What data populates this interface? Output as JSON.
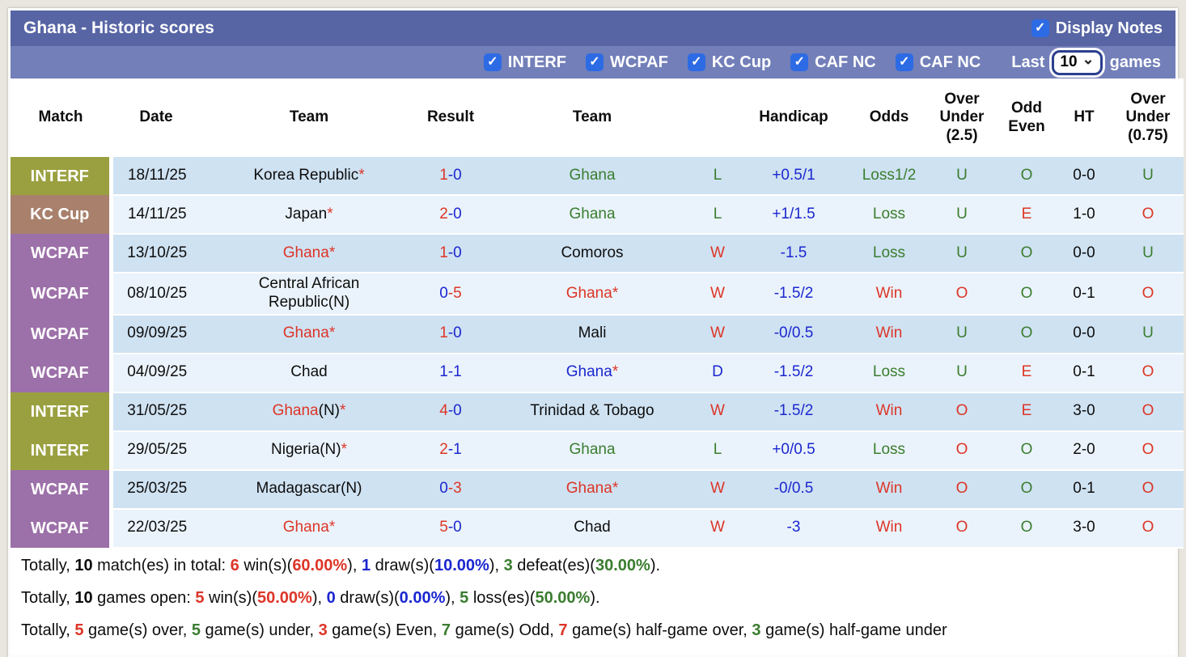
{
  "title_bar": {
    "title": "Ghana - Historic scores",
    "display_notes": "Display Notes"
  },
  "filter_bar": {
    "competitions": [
      "INTERF",
      "WCPAF",
      "KC Cup",
      "CAF NC",
      "CAF NC"
    ],
    "last": "Last",
    "selected_count": "10",
    "games": "games"
  },
  "table": {
    "headers": [
      {
        "key": "match",
        "label": "Match"
      },
      {
        "key": "date",
        "label": "Date"
      },
      {
        "key": "team-home",
        "label": "Team"
      },
      {
        "key": "result",
        "label": "Result"
      },
      {
        "key": "team-away",
        "label": "Team"
      },
      {
        "key": "result-letter",
        "label": ""
      },
      {
        "key": "handicap",
        "label": "Handicap"
      },
      {
        "key": "odds",
        "label": "Odds"
      },
      {
        "key": "over-under-2-5",
        "label": "Over\nUnder\n(2.5)"
      },
      {
        "key": "odd-even",
        "label": "Odd\nEven"
      },
      {
        "key": "ht",
        "label": "HT"
      },
      {
        "key": "over-under-0-75",
        "label": "Over\nUnder\n(0.75)"
      }
    ],
    "rows": [
      {
        "competition": "INTERF",
        "badge": "interf",
        "date": "18/11/25",
        "home": [
          {
            "t": "Korea Republic",
            "c": "black"
          },
          {
            "t": "*",
            "c": "red"
          }
        ],
        "score": {
          "h": "1",
          "hc": "red",
          "a": "0",
          "ac": "blue"
        },
        "away": [
          {
            "t": "Ghana",
            "c": "green"
          }
        ],
        "wdl": {
          "t": "L",
          "c": "green"
        },
        "handicap": "+0.5/1",
        "odds": {
          "t": "Loss1/2",
          "c": "green"
        },
        "ou25": {
          "t": "U",
          "c": "green"
        },
        "oddeven": {
          "t": "O",
          "c": "green"
        },
        "ht": "0-0",
        "ou075": {
          "t": "U",
          "c": "green"
        }
      },
      {
        "competition": "KC Cup",
        "badge": "kccup",
        "date": "14/11/25",
        "home": [
          {
            "t": "Japan",
            "c": "black"
          },
          {
            "t": "*",
            "c": "red"
          }
        ],
        "score": {
          "h": "2",
          "hc": "red",
          "a": "0",
          "ac": "blue"
        },
        "away": [
          {
            "t": "Ghana",
            "c": "green"
          }
        ],
        "wdl": {
          "t": "L",
          "c": "green"
        },
        "handicap": "+1/1.5",
        "odds": {
          "t": "Loss",
          "c": "green"
        },
        "ou25": {
          "t": "U",
          "c": "green"
        },
        "oddeven": {
          "t": "E",
          "c": "red"
        },
        "ht": "1-0",
        "ou075": {
          "t": "O",
          "c": "red"
        }
      },
      {
        "competition": "WCPAF",
        "badge": "wcpaf",
        "date": "13/10/25",
        "home": [
          {
            "t": "Ghana",
            "c": "red"
          },
          {
            "t": "*",
            "c": "red"
          }
        ],
        "score": {
          "h": "1",
          "hc": "red",
          "a": "0",
          "ac": "blue"
        },
        "away": [
          {
            "t": "Comoros",
            "c": "black"
          }
        ],
        "wdl": {
          "t": "W",
          "c": "red"
        },
        "handicap": "-1.5",
        "odds": {
          "t": "Loss",
          "c": "green"
        },
        "ou25": {
          "t": "U",
          "c": "green"
        },
        "oddeven": {
          "t": "O",
          "c": "green"
        },
        "ht": "0-0",
        "ou075": {
          "t": "U",
          "c": "green"
        }
      },
      {
        "competition": "WCPAF",
        "badge": "wcpaf",
        "date": "08/10/25",
        "home": [
          {
            "t": "Central African Republic(N)",
            "c": "black"
          }
        ],
        "score": {
          "h": "0",
          "hc": "blue",
          "a": "5",
          "ac": "red"
        },
        "away": [
          {
            "t": "Ghana",
            "c": "red"
          },
          {
            "t": "*",
            "c": "red"
          }
        ],
        "wdl": {
          "t": "W",
          "c": "red"
        },
        "handicap": "-1.5/2",
        "odds": {
          "t": "Win",
          "c": "red"
        },
        "ou25": {
          "t": "O",
          "c": "red"
        },
        "oddeven": {
          "t": "O",
          "c": "green"
        },
        "ht": "0-1",
        "ou075": {
          "t": "O",
          "c": "red"
        }
      },
      {
        "competition": "WCPAF",
        "badge": "wcpaf",
        "date": "09/09/25",
        "home": [
          {
            "t": "Ghana",
            "c": "red"
          },
          {
            "t": "*",
            "c": "red"
          }
        ],
        "score": {
          "h": "1",
          "hc": "red",
          "a": "0",
          "ac": "blue"
        },
        "away": [
          {
            "t": "Mali",
            "c": "black"
          }
        ],
        "wdl": {
          "t": "W",
          "c": "red"
        },
        "handicap": "-0/0.5",
        "odds": {
          "t": "Win",
          "c": "red"
        },
        "ou25": {
          "t": "U",
          "c": "green"
        },
        "oddeven": {
          "t": "O",
          "c": "green"
        },
        "ht": "0-0",
        "ou075": {
          "t": "U",
          "c": "green"
        }
      },
      {
        "competition": "WCPAF",
        "badge": "wcpaf",
        "date": "04/09/25",
        "home": [
          {
            "t": "Chad",
            "c": "black"
          }
        ],
        "score": {
          "h": "1",
          "hc": "blue",
          "a": "1",
          "ac": "blue"
        },
        "away": [
          {
            "t": "Ghana",
            "c": "blue"
          },
          {
            "t": "*",
            "c": "red"
          }
        ],
        "wdl": {
          "t": "D",
          "c": "blue"
        },
        "handicap": "-1.5/2",
        "odds": {
          "t": "Loss",
          "c": "green"
        },
        "ou25": {
          "t": "U",
          "c": "green"
        },
        "oddeven": {
          "t": "E",
          "c": "red"
        },
        "ht": "0-1",
        "ou075": {
          "t": "O",
          "c": "red"
        }
      },
      {
        "competition": "INTERF",
        "badge": "interf",
        "date": "31/05/25",
        "home": [
          {
            "t": "Ghana",
            "c": "red"
          },
          {
            "t": "(N)",
            "c": "black"
          },
          {
            "t": "*",
            "c": "red"
          }
        ],
        "score": {
          "h": "4",
          "hc": "red",
          "a": "0",
          "ac": "blue"
        },
        "away": [
          {
            "t": "Trinidad & Tobago",
            "c": "black"
          }
        ],
        "wdl": {
          "t": "W",
          "c": "red"
        },
        "handicap": "-1.5/2",
        "odds": {
          "t": "Win",
          "c": "red"
        },
        "ou25": {
          "t": "O",
          "c": "red"
        },
        "oddeven": {
          "t": "E",
          "c": "red"
        },
        "ht": "3-0",
        "ou075": {
          "t": "O",
          "c": "red"
        }
      },
      {
        "competition": "INTERF",
        "badge": "interf",
        "date": "29/05/25",
        "home": [
          {
            "t": "Nigeria",
            "c": "black"
          },
          {
            "t": "(N)",
            "c": "black"
          },
          {
            "t": "*",
            "c": "red"
          }
        ],
        "score": {
          "h": "2",
          "hc": "red",
          "a": "1",
          "ac": "blue"
        },
        "away": [
          {
            "t": "Ghana",
            "c": "green"
          }
        ],
        "wdl": {
          "t": "L",
          "c": "green"
        },
        "handicap": "+0/0.5",
        "odds": {
          "t": "Loss",
          "c": "green"
        },
        "ou25": {
          "t": "O",
          "c": "red"
        },
        "oddeven": {
          "t": "O",
          "c": "green"
        },
        "ht": "2-0",
        "ou075": {
          "t": "O",
          "c": "red"
        }
      },
      {
        "competition": "WCPAF",
        "badge": "wcpaf",
        "date": "25/03/25",
        "home": [
          {
            "t": "Madagascar(N)",
            "c": "black"
          }
        ],
        "score": {
          "h": "0",
          "hc": "blue",
          "a": "3",
          "ac": "red"
        },
        "away": [
          {
            "t": "Ghana",
            "c": "red"
          },
          {
            "t": "*",
            "c": "red"
          }
        ],
        "wdl": {
          "t": "W",
          "c": "red"
        },
        "handicap": "-0/0.5",
        "odds": {
          "t": "Win",
          "c": "red"
        },
        "ou25": {
          "t": "O",
          "c": "red"
        },
        "oddeven": {
          "t": "O",
          "c": "green"
        },
        "ht": "0-1",
        "ou075": {
          "t": "O",
          "c": "red"
        }
      },
      {
        "competition": "WCPAF",
        "badge": "wcpaf",
        "date": "22/03/25",
        "home": [
          {
            "t": "Ghana",
            "c": "red"
          },
          {
            "t": "*",
            "c": "red"
          }
        ],
        "score": {
          "h": "5",
          "hc": "red",
          "a": "0",
          "ac": "blue"
        },
        "away": [
          {
            "t": "Chad",
            "c": "black"
          }
        ],
        "wdl": {
          "t": "W",
          "c": "red"
        },
        "handicap": "-3",
        "odds": {
          "t": "Win",
          "c": "red"
        },
        "ou25": {
          "t": "O",
          "c": "red"
        },
        "oddeven": {
          "t": "O",
          "c": "green"
        },
        "ht": "3-0",
        "ou075": {
          "t": "O",
          "c": "red"
        }
      }
    ]
  },
  "summary": {
    "lines": [
      [
        {
          "t": "Totally, ",
          "c": "black"
        },
        {
          "t": "10",
          "c": "black",
          "b": 1
        },
        {
          "t": " match(es) in total: ",
          "c": "black"
        },
        {
          "t": "6",
          "c": "red",
          "b": 1
        },
        {
          "t": " win(s)(",
          "c": "black"
        },
        {
          "t": "60.00%",
          "c": "red",
          "b": 1
        },
        {
          "t": "), ",
          "c": "black"
        },
        {
          "t": "1",
          "c": "blue",
          "b": 1
        },
        {
          "t": " draw(s)(",
          "c": "black"
        },
        {
          "t": "10.00%",
          "c": "blue",
          "b": 1
        },
        {
          "t": "), ",
          "c": "black"
        },
        {
          "t": "3",
          "c": "green",
          "b": 1
        },
        {
          "t": " defeat(es)(",
          "c": "black"
        },
        {
          "t": "30.00%",
          "c": "green",
          "b": 1
        },
        {
          "t": ").",
          "c": "black"
        }
      ],
      [
        {
          "t": "Totally, ",
          "c": "black"
        },
        {
          "t": "10",
          "c": "black",
          "b": 1
        },
        {
          "t": " games open: ",
          "c": "black"
        },
        {
          "t": "5",
          "c": "red",
          "b": 1
        },
        {
          "t": " win(s)(",
          "c": "black"
        },
        {
          "t": "50.00%",
          "c": "red",
          "b": 1
        },
        {
          "t": "), ",
          "c": "black"
        },
        {
          "t": "0",
          "c": "blue",
          "b": 1
        },
        {
          "t": " draw(s)(",
          "c": "black"
        },
        {
          "t": "0.00%",
          "c": "blue",
          "b": 1
        },
        {
          "t": "), ",
          "c": "black"
        },
        {
          "t": "5",
          "c": "green",
          "b": 1
        },
        {
          "t": " loss(es)(",
          "c": "black"
        },
        {
          "t": "50.00%",
          "c": "green",
          "b": 1
        },
        {
          "t": ").",
          "c": "black"
        }
      ],
      [
        {
          "t": "Totally, ",
          "c": "black"
        },
        {
          "t": "5",
          "c": "red",
          "b": 1
        },
        {
          "t": " game(s) over, ",
          "c": "black"
        },
        {
          "t": "5",
          "c": "green",
          "b": 1
        },
        {
          "t": " game(s) under, ",
          "c": "black"
        },
        {
          "t": "3",
          "c": "red",
          "b": 1
        },
        {
          "t": " game(s) Even, ",
          "c": "black"
        },
        {
          "t": "7",
          "c": "green",
          "b": 1
        },
        {
          "t": " game(s) Odd, ",
          "c": "black"
        },
        {
          "t": "7",
          "c": "red",
          "b": 1
        },
        {
          "t": " game(s) half-game over, ",
          "c": "black"
        },
        {
          "t": "3",
          "c": "green",
          "b": 1
        },
        {
          "t": " game(s) half-game under",
          "c": "black"
        }
      ]
    ]
  }
}
